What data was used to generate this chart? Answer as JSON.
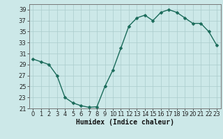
{
  "x": [
    0,
    1,
    2,
    3,
    4,
    5,
    6,
    7,
    8,
    9,
    10,
    11,
    12,
    13,
    14,
    15,
    16,
    17,
    18,
    19,
    20,
    21,
    22,
    23
  ],
  "y": [
    30.0,
    29.5,
    29.0,
    27.0,
    23.0,
    22.0,
    21.5,
    21.2,
    21.3,
    25.0,
    28.0,
    32.0,
    36.0,
    37.5,
    38.0,
    37.0,
    38.5,
    39.0,
    38.5,
    37.5,
    36.5,
    36.5,
    35.0,
    32.5
  ],
  "xlabel": "Humidex (Indice chaleur)",
  "ylim": [
    21,
    40
  ],
  "xlim": [
    -0.5,
    23.5
  ],
  "yticks": [
    21,
    23,
    25,
    27,
    29,
    31,
    33,
    35,
    37,
    39
  ],
  "xticks": [
    0,
    1,
    2,
    3,
    4,
    5,
    6,
    7,
    8,
    9,
    10,
    11,
    12,
    13,
    14,
    15,
    16,
    17,
    18,
    19,
    20,
    21,
    22,
    23
  ],
  "line_color": "#1a6b5a",
  "marker_color": "#1a6b5a",
  "bg_color": "#cce8e8",
  "grid_color": "#aacccc",
  "xlabel_fontsize": 7,
  "tick_fontsize": 6,
  "marker_size": 2.5,
  "line_width": 1.0
}
